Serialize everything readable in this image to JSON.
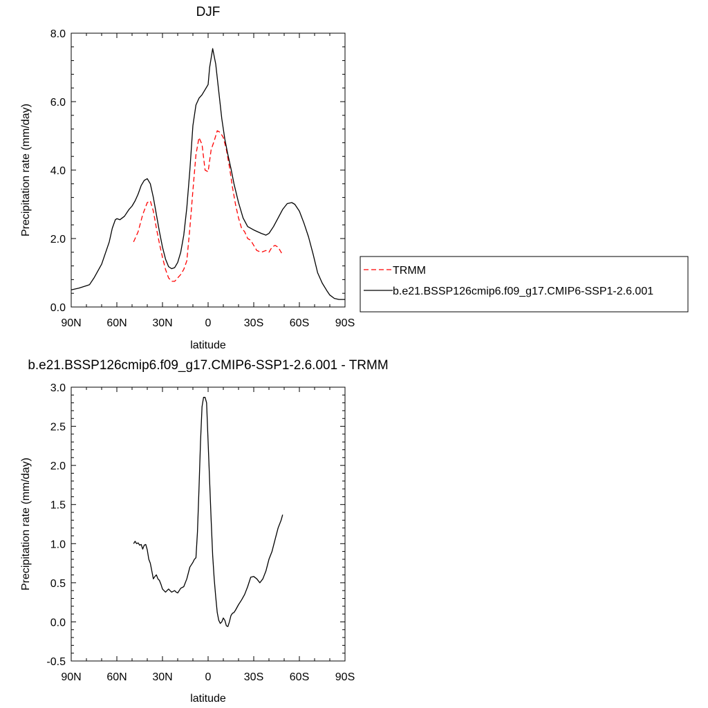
{
  "chart_data": [
    {
      "type": "line",
      "title": "DJF",
      "xlabel": "latitude",
      "ylabel": "Precipitation rate (mm/day)",
      "xlim": [
        90,
        -90
      ],
      "ylim": [
        0,
        8
      ],
      "x_ticks": [
        90,
        60,
        30,
        0,
        -30,
        -60,
        -90
      ],
      "x_tick_labels": [
        "90N",
        "60N",
        "30N",
        "0",
        "30S",
        "60S",
        "90S"
      ],
      "y_ticks": [
        0,
        2,
        4,
        6,
        8
      ],
      "y_tick_labels": [
        "0.0",
        "2.0",
        "4.0",
        "6.0",
        "8.0"
      ],
      "legend_position": "right",
      "series": [
        {
          "name": "TRMM",
          "color": "#ff0000",
          "style": "dashed",
          "x": [
            49,
            46,
            43,
            40,
            38,
            36,
            34,
            32,
            30,
            28,
            26,
            24,
            22,
            20,
            18,
            16,
            14,
            12,
            10,
            8,
            6,
            4,
            2,
            0,
            -2,
            -4,
            -6,
            -8,
            -10,
            -12,
            -14,
            -16,
            -18,
            -20,
            -22,
            -24,
            -26,
            -28,
            -30,
            -32,
            -35,
            -38,
            -40,
            -42,
            -44,
            -46,
            -48,
            -49
          ],
          "y": [
            1.9,
            2.2,
            2.7,
            3.05,
            3.1,
            2.8,
            2.3,
            1.85,
            1.45,
            1.1,
            0.85,
            0.75,
            0.75,
            0.85,
            0.95,
            1.1,
            1.35,
            2.3,
            3.4,
            4.45,
            4.95,
            4.75,
            4.0,
            3.95,
            4.6,
            4.85,
            5.15,
            5.1,
            4.95,
            4.6,
            4.1,
            3.5,
            3.0,
            2.6,
            2.3,
            2.2,
            2.0,
            1.95,
            1.8,
            1.65,
            1.6,
            1.65,
            1.6,
            1.75,
            1.8,
            1.75,
            1.6,
            1.5
          ]
        },
        {
          "name": "b.e21.BSSP126cmip6.f09_g17.CMIP6-SSP1-2.6.001",
          "color": "#000000",
          "style": "solid",
          "x": [
            90,
            85,
            80,
            78,
            75,
            70,
            65,
            63,
            61,
            60,
            58,
            55,
            52,
            50,
            48,
            46,
            44,
            42,
            40,
            38,
            36,
            34,
            32,
            30,
            28,
            26,
            24,
            22,
            20,
            18,
            16,
            14,
            12,
            10,
            8,
            6,
            4,
            2,
            0,
            -1,
            -3,
            -5,
            -7,
            -9,
            -11,
            -13,
            -15,
            -17,
            -20,
            -23,
            -26,
            -30,
            -35,
            -38,
            -40,
            -43,
            -46,
            -49,
            -52,
            -55,
            -57,
            -60,
            -63,
            -66,
            -69,
            -72,
            -75,
            -78,
            -80,
            -83,
            -86,
            -88,
            -90
          ],
          "y": [
            0.5,
            0.55,
            0.62,
            0.65,
            0.85,
            1.25,
            1.9,
            2.3,
            2.55,
            2.58,
            2.55,
            2.65,
            2.85,
            2.95,
            3.1,
            3.3,
            3.55,
            3.7,
            3.75,
            3.6,
            3.2,
            2.7,
            2.2,
            1.75,
            1.4,
            1.18,
            1.12,
            1.15,
            1.3,
            1.6,
            2.1,
            2.9,
            4.0,
            5.3,
            5.9,
            6.1,
            6.2,
            6.35,
            6.5,
            7.0,
            7.55,
            7.1,
            6.3,
            5.5,
            4.9,
            4.45,
            4.05,
            3.6,
            3.05,
            2.6,
            2.35,
            2.25,
            2.15,
            2.1,
            2.15,
            2.35,
            2.6,
            2.85,
            3.02,
            3.05,
            3.0,
            2.8,
            2.45,
            2.05,
            1.55,
            1.0,
            0.7,
            0.48,
            0.35,
            0.25,
            0.22,
            0.22,
            0.22
          ]
        }
      ]
    },
    {
      "type": "line",
      "title": "b.e21.BSSP126cmip6.f09_g17.CMIP6-SSP1-2.6.001 - TRMM",
      "xlabel": "latitude",
      "ylabel": "Precipitation rate (mm/day)",
      "xlim": [
        90,
        -90
      ],
      "ylim": [
        -0.5,
        3.0
      ],
      "x_ticks": [
        90,
        60,
        30,
        0,
        -30,
        -60,
        -90
      ],
      "x_tick_labels": [
        "90N",
        "60N",
        "30N",
        "0",
        "30S",
        "60S",
        "90S"
      ],
      "y_ticks": [
        -0.5,
        0,
        0.5,
        1,
        1.5,
        2,
        2.5,
        3
      ],
      "y_tick_labels": [
        "-0.5",
        "0.0",
        "0.5",
        "1.0",
        "1.5",
        "2.0",
        "2.5",
        "3.0"
      ],
      "series": [
        {
          "color": "#000000",
          "style": "solid",
          "x": [
            49,
            48,
            47,
            46,
            45,
            44,
            43,
            42,
            41,
            40,
            39,
            38,
            37,
            36,
            35,
            34,
            33,
            32,
            31,
            30,
            28,
            26,
            24,
            22,
            21,
            20,
            18,
            16,
            14,
            12,
            11,
            10,
            9,
            8,
            7,
            6,
            5,
            4,
            3,
            2,
            1,
            0,
            -1,
            -2,
            -3,
            -4,
            -5,
            -6,
            -7,
            -8,
            -9,
            -10,
            -11,
            -12,
            -13,
            -14,
            -15,
            -16,
            -17,
            -18,
            -20,
            -22,
            -24,
            -26,
            -28,
            -30,
            -32,
            -34,
            -36,
            -38,
            -40,
            -42,
            -44,
            -46,
            -48,
            -49
          ],
          "y": [
            1.0,
            1.03,
            1.0,
            1.01,
            0.98,
            0.99,
            0.93,
            0.98,
            0.99,
            0.92,
            0.8,
            0.75,
            0.65,
            0.55,
            0.58,
            0.6,
            0.55,
            0.53,
            0.48,
            0.42,
            0.38,
            0.42,
            0.38,
            0.4,
            0.38,
            0.37,
            0.43,
            0.45,
            0.55,
            0.7,
            0.73,
            0.76,
            0.8,
            0.82,
            1.15,
            1.7,
            2.3,
            2.75,
            2.87,
            2.87,
            2.8,
            2.3,
            1.8,
            1.3,
            0.85,
            0.55,
            0.32,
            0.12,
            0.02,
            -0.02,
            0.0,
            0.05,
            0.02,
            -0.05,
            -0.06,
            0.0,
            0.08,
            0.11,
            0.12,
            0.15,
            0.22,
            0.28,
            0.35,
            0.45,
            0.57,
            0.58,
            0.55,
            0.5,
            0.55,
            0.65,
            0.8,
            0.9,
            1.05,
            1.2,
            1.3,
            1.37
          ]
        }
      ]
    }
  ]
}
